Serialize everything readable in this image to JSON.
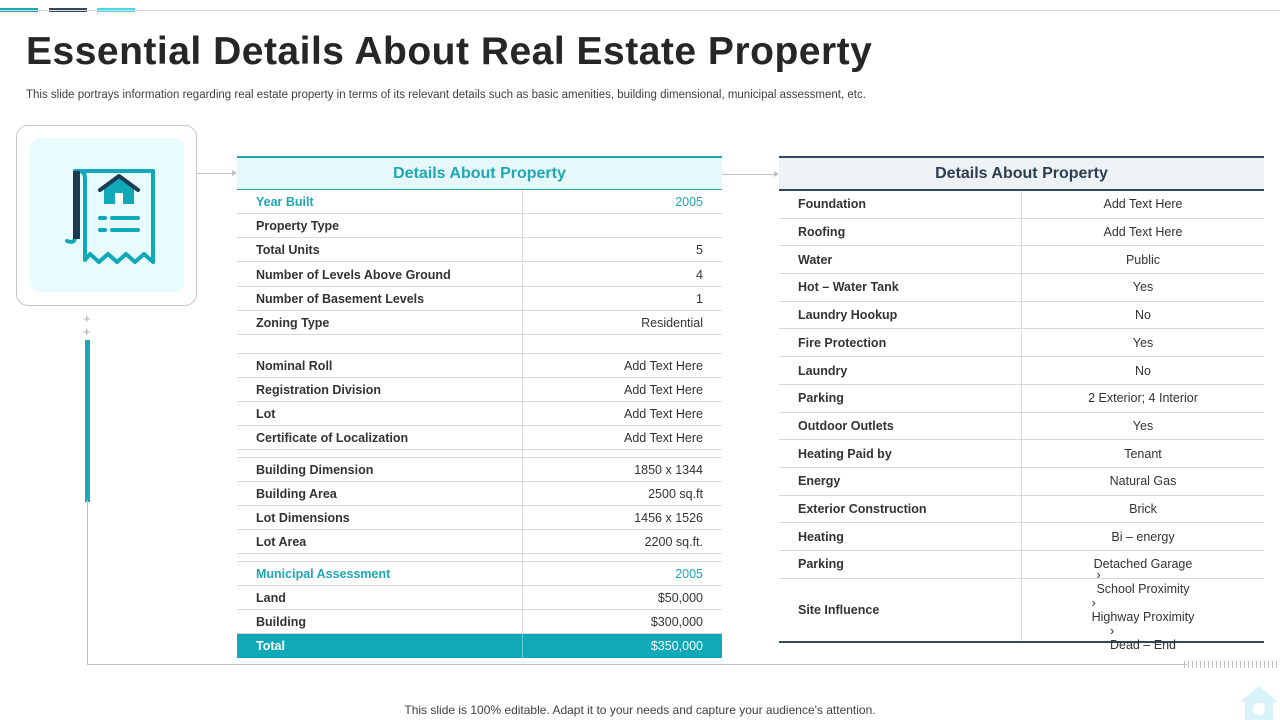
{
  "title": "Essential Details About Real Estate Property",
  "subtitle": "This slide portrays information regarding real estate property in terms of its relevant details such as basic amenities, building dimensional, municipal assessment, etc.",
  "colors": {
    "accent": "#1ea7b5",
    "dark": "#34495e",
    "total_bg": "#0fa9b8"
  },
  "icon": "property-document-icon",
  "left_table": {
    "header": "Details About Property",
    "rows": [
      {
        "label": "Year Built",
        "value": "2005"
      },
      {
        "label": "Property Type",
        "value": ""
      },
      {
        "label": "Total Units",
        "value": "5"
      },
      {
        "label": "Number of Levels Above Ground",
        "value": "4"
      },
      {
        "label": "Number of Basement Levels",
        "value": "1"
      },
      {
        "label": "Zoning Type",
        "value": "Residential"
      },
      {
        "label": "Nominal Roll",
        "value": "Add Text Here"
      },
      {
        "label": "Registration Division",
        "value": "Add Text Here"
      },
      {
        "label": "Lot",
        "value": "Add Text Here"
      },
      {
        "label": "Certificate of Localization",
        "value": "Add Text Here"
      },
      {
        "label": "Building Dimension",
        "value": "1850 x 1344"
      },
      {
        "label": "Building Area",
        "value": "2500 sq.ft"
      },
      {
        "label": "Lot Dimensions",
        "value": "1456 x 1526"
      },
      {
        "label": "Lot Area",
        "value": "2200 sq.ft."
      },
      {
        "label": "Municipal Assessment",
        "value": "2005"
      },
      {
        "label": "Land",
        "value": "$50,000"
      },
      {
        "label": "Building",
        "value": "$300,000"
      },
      {
        "label": "Total",
        "value": "$350,000"
      }
    ]
  },
  "right_table": {
    "header": "Details About Property",
    "rows": [
      {
        "label": "Foundation",
        "value": "Add Text Here"
      },
      {
        "label": "Roofing",
        "value": "Add Text Here"
      },
      {
        "label": "Water",
        "value": "Public"
      },
      {
        "label": "Hot – Water Tank",
        "value": "Yes"
      },
      {
        "label": "Laundry Hookup",
        "value": "No"
      },
      {
        "label": "Fire Protection",
        "value": "Yes"
      },
      {
        "label": "Laundry",
        "value": "No"
      },
      {
        "label": "Parking",
        "value": "2 Exterior; 4 Interior"
      },
      {
        "label": "Outdoor Outlets",
        "value": "Yes"
      },
      {
        "label": "Heating Paid by",
        "value": "Tenant"
      },
      {
        "label": "Energy",
        "value": "Natural Gas"
      },
      {
        "label": "Exterior Construction",
        "value": "Brick"
      },
      {
        "label": "Heating",
        "value": "Bi – energy"
      },
      {
        "label": "Parking",
        "value": "Detached Garage"
      }
    ],
    "site_influence": {
      "label": "Site Influence",
      "items": [
        "School Proximity",
        "Highway Proximity",
        "Dead – End"
      ]
    }
  },
  "footer": "This slide is 100% editable. Adapt it to your needs and capture your audience's attention."
}
